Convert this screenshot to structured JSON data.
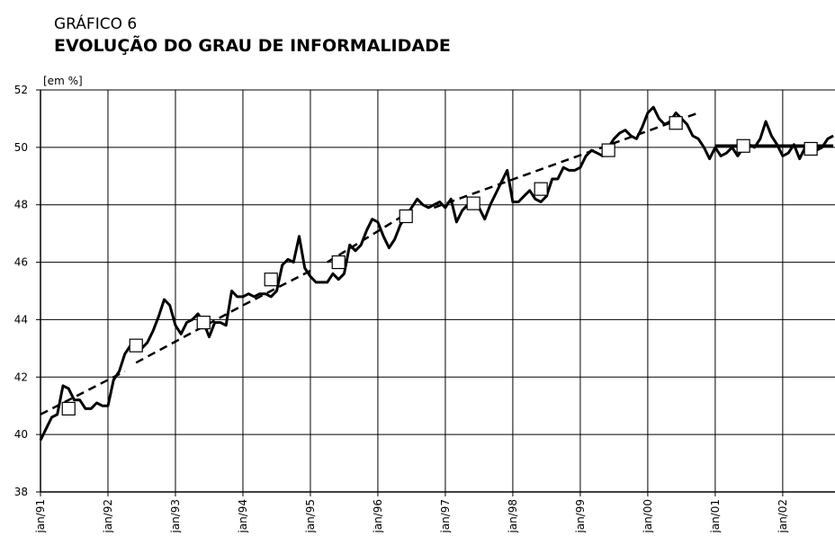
{
  "chart_data": {
    "type": "line",
    "kicker": "GRÁFICO 6",
    "title": "EVOLUÇÃO DO GRAU DE INFORMALIDADE",
    "y_label": "[em %]",
    "xlim": [
      0,
      141.3
    ],
    "xticks": [
      {
        "value": 0,
        "label": "jan/91"
      },
      {
        "value": 12,
        "label": "jan/92"
      },
      {
        "value": 24,
        "label": "jan/93"
      },
      {
        "value": 36,
        "label": "jan/94"
      },
      {
        "value": 48,
        "label": "jan/95"
      },
      {
        "value": 60,
        "label": "jan/96"
      },
      {
        "value": 72,
        "label": "jan/97"
      },
      {
        "value": 84,
        "label": "jan/98"
      },
      {
        "value": 96,
        "label": "jan/99"
      },
      {
        "value": 108,
        "label": "jan/00"
      },
      {
        "value": 120,
        "label": "jan/01"
      },
      {
        "value": 132,
        "label": "jan/02"
      }
    ],
    "ylim": [
      38,
      52
    ],
    "yticks": [
      38,
      40,
      42,
      44,
      46,
      48,
      50,
      52
    ],
    "grid": true,
    "series": [
      {
        "color": "#000000",
        "style": "solid",
        "width": 3,
        "x": [
          0,
          1,
          2,
          3,
          4,
          5,
          6,
          7,
          8,
          9,
          10,
          11,
          12,
          13,
          14,
          15,
          16,
          17,
          18,
          19,
          20,
          21,
          22,
          23,
          24,
          25,
          26,
          27,
          28,
          29,
          30,
          31,
          32,
          33,
          34,
          35,
          36,
          37,
          38,
          39,
          40,
          41,
          42,
          43,
          44,
          45,
          46,
          47,
          48,
          49,
          50,
          51,
          52,
          53,
          54,
          55,
          56,
          57,
          58,
          59,
          60,
          61,
          62,
          63,
          64,
          65,
          66,
          67,
          68,
          69,
          70,
          71,
          72,
          73,
          74,
          75,
          76,
          77,
          78,
          79,
          80,
          81,
          82,
          83,
          84,
          85,
          86,
          87,
          88,
          89,
          90,
          91,
          92,
          93,
          94,
          95,
          96,
          97,
          98,
          99,
          100,
          101,
          102,
          103,
          104,
          105,
          106,
          107,
          108,
          109,
          110,
          111,
          112,
          113,
          114,
          115,
          116,
          117,
          118,
          119,
          120,
          121,
          122,
          123,
          124,
          125,
          126,
          127,
          128,
          129,
          130,
          131,
          132,
          133,
          134,
          135,
          136,
          137,
          138,
          139,
          140,
          141
        ],
        "values": [
          39.8,
          40.2,
          40.6,
          40.7,
          41.7,
          41.6,
          41.2,
          41.2,
          40.9,
          40.9,
          41.1,
          41.0,
          41.0,
          41.9,
          42.2,
          42.8,
          43.1,
          43.2,
          43.0,
          43.2,
          43.6,
          44.1,
          44.7,
          44.5,
          43.8,
          43.5,
          43.9,
          44.0,
          44.2,
          43.9,
          43.4,
          43.9,
          43.9,
          43.8,
          45.0,
          44.8,
          44.8,
          44.9,
          44.8,
          44.9,
          44.9,
          44.8,
          45.0,
          45.9,
          46.1,
          46.0,
          46.9,
          45.8,
          45.5,
          45.3,
          45.3,
          45.3,
          45.6,
          45.4,
          45.6,
          46.6,
          46.4,
          46.6,
          47.1,
          47.5,
          47.4,
          46.9,
          46.5,
          46.8,
          47.3,
          47.6,
          47.9,
          48.2,
          48.0,
          47.9,
          48.0,
          48.1,
          47.9,
          48.2,
          47.4,
          47.8,
          48.0,
          48.0,
          47.9,
          47.5,
          48.0,
          48.4,
          48.8,
          49.2,
          48.1,
          48.1,
          48.3,
          48.5,
          48.2,
          48.1,
          48.3,
          48.9,
          48.9,
          49.3,
          49.2,
          49.2,
          49.3,
          49.7,
          49.9,
          49.8,
          49.7,
          50.0,
          50.3,
          50.5,
          50.6,
          50.4,
          50.3,
          50.7,
          51.2,
          51.4,
          51.0,
          50.8,
          50.9,
          51.2,
          51.0,
          50.8,
          50.4,
          50.3,
          50.0,
          49.6,
          50.0,
          49.7,
          49.8,
          50.0,
          49.7,
          50.0,
          50.1,
          50.0,
          50.3,
          50.9,
          50.4,
          50.1,
          49.7,
          49.8,
          50.1,
          49.6,
          50.0,
          50.0,
          49.9,
          50.0,
          50.3,
          50.4
        ]
      },
      {
        "color": "#000000",
        "style": "dashed",
        "width": 2.5,
        "x": [
          0,
          15,
          16,
          17,
          36,
          48,
          49,
          51,
          66,
          67,
          70,
          117
        ],
        "values": [
          40.7,
          42.2,
          null,
          42.5,
          44.5,
          45.7,
          null,
          46.0,
          47.8,
          null,
          47.9,
          51.2
        ]
      },
      {
        "color": "#000000",
        "style": "solid",
        "width": 3.5,
        "x": [
          120,
          141
        ],
        "values": [
          50.05,
          50.05
        ]
      },
      {
        "color": "#000000",
        "style": "marker",
        "x": [
          5,
          17,
          29,
          41,
          53,
          65,
          77,
          89,
          101,
          113,
          125,
          137
        ],
        "values": [
          40.9,
          43.1,
          43.9,
          45.4,
          46.0,
          47.6,
          48.05,
          48.55,
          49.9,
          50.85,
          50.05,
          49.95
        ]
      }
    ]
  }
}
